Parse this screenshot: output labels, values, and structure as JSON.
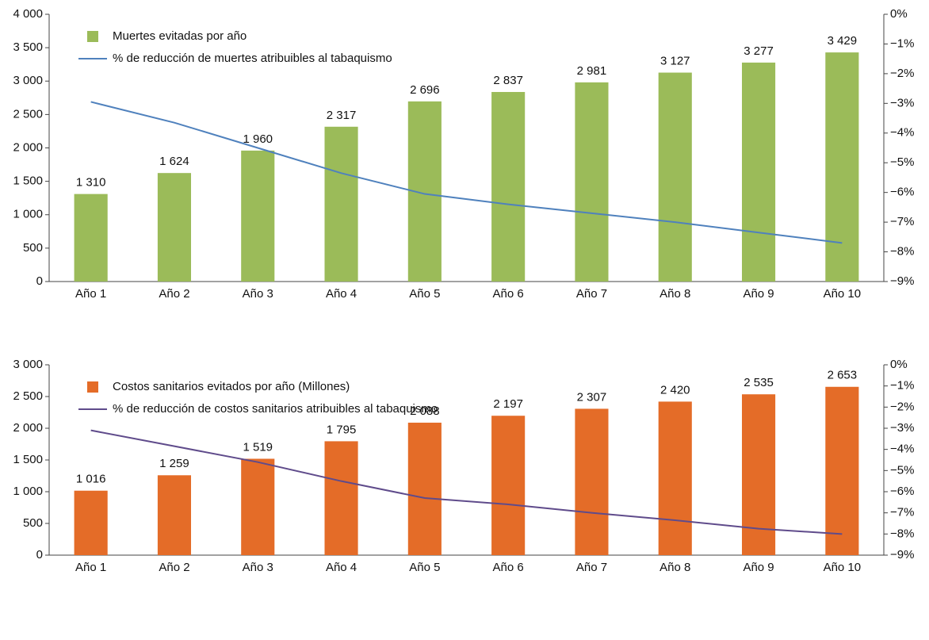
{
  "chart_data": [
    {
      "type": "bar",
      "categories": [
        "Año 1",
        "Año 2",
        "Año 3",
        "Año 4",
        "Año 5",
        "Año 6",
        "Año 7",
        "Año 8",
        "Año 9",
        "Año 10"
      ],
      "ylim": [
        0,
        4000
      ],
      "yticks": [
        {
          "value": 0,
          "label": "0"
        },
        {
          "value": 500,
          "label": "500"
        },
        {
          "value": 1000,
          "label": "1 000"
        },
        {
          "value": 1500,
          "label": "1 500"
        },
        {
          "value": 2000,
          "label": "2 000"
        },
        {
          "value": 2500,
          "label": "2 500"
        },
        {
          "value": 3000,
          "label": "3 000"
        },
        {
          "value": 3500,
          "label": "3 500"
        },
        {
          "value": 4000,
          "label": "4 000"
        }
      ],
      "y2lim": [
        -9,
        0
      ],
      "y2ticks": [
        {
          "value": 0,
          "label": "0%"
        },
        {
          "value": -1,
          "label": "−1%"
        },
        {
          "value": -2,
          "label": "−2%"
        },
        {
          "value": -3,
          "label": "−3%"
        },
        {
          "value": -4,
          "label": "−4%"
        },
        {
          "value": -5,
          "label": "−5%"
        },
        {
          "value": -6,
          "label": "−6%"
        },
        {
          "value": -7,
          "label": "−7%"
        },
        {
          "value": -8,
          "label": "−8%"
        },
        {
          "value": -9,
          "label": "−9%"
        }
      ],
      "series": [
        {
          "name": "Muertes evitadas por año",
          "color": "#9bbb59",
          "values": [
            1310,
            1624,
            1960,
            2317,
            2696,
            2837,
            2981,
            3127,
            3277,
            3429
          ],
          "value_labels": [
            "1 310",
            "1 624",
            "1 960",
            "2 317",
            "2 696",
            "2 837",
            "2 981",
            "3 127",
            "3 277",
            "3 429"
          ]
        },
        {
          "name": "% de reducción de muertes atribuibles al tabaquismo",
          "color": "#4f81bd",
          "type": "line",
          "axis": "y2",
          "values": [
            -2.95,
            -3.65,
            -4.5,
            -5.35,
            -6.05,
            -6.4,
            -6.7,
            -7.0,
            -7.35,
            -7.7
          ]
        }
      ]
    },
    {
      "type": "bar",
      "categories": [
        "Año 1",
        "Año 2",
        "Año 3",
        "Año 4",
        "Año 5",
        "Año 6",
        "Año 7",
        "Año 8",
        "Año 9",
        "Año 10"
      ],
      "ylim": [
        0,
        3000
      ],
      "yticks": [
        {
          "value": 0,
          "label": "0"
        },
        {
          "value": 500,
          "label": "500"
        },
        {
          "value": 1000,
          "label": "1 000"
        },
        {
          "value": 1500,
          "label": "1 500"
        },
        {
          "value": 2000,
          "label": "2 000"
        },
        {
          "value": 2500,
          "label": "2 500"
        },
        {
          "value": 3000,
          "label": "3 000"
        }
      ],
      "y2lim": [
        -9,
        0
      ],
      "y2ticks": [
        {
          "value": 0,
          "label": "0%"
        },
        {
          "value": -1,
          "label": "−1%"
        },
        {
          "value": -2,
          "label": "−2%"
        },
        {
          "value": -3,
          "label": "−3%"
        },
        {
          "value": -4,
          "label": "−4%"
        },
        {
          "value": -5,
          "label": "−5%"
        },
        {
          "value": -6,
          "label": "−6%"
        },
        {
          "value": -7,
          "label": "−7%"
        },
        {
          "value": -8,
          "label": "−8%"
        },
        {
          "value": -9,
          "label": "−9%"
        }
      ],
      "series": [
        {
          "name": "Costos sanitarios evitados por año (Millones)",
          "color": "#e46c28",
          "values": [
            1016,
            1259,
            1519,
            1795,
            2088,
            2197,
            2307,
            2420,
            2535,
            2653
          ],
          "value_labels": [
            "1 016",
            "1 259",
            "1 519",
            "1 795",
            "2 088",
            "2 197",
            "2 307",
            "2 420",
            "2 535",
            "2 653"
          ]
        },
        {
          "name": "% de reducción de costos sanitarios atribuibles al tabaquismo",
          "color": "#5f4b8b",
          "type": "line",
          "axis": "y2",
          "values": [
            -3.1,
            -3.85,
            -4.6,
            -5.5,
            -6.3,
            -6.6,
            -7.0,
            -7.35,
            -7.75,
            -8.0
          ]
        }
      ]
    }
  ]
}
